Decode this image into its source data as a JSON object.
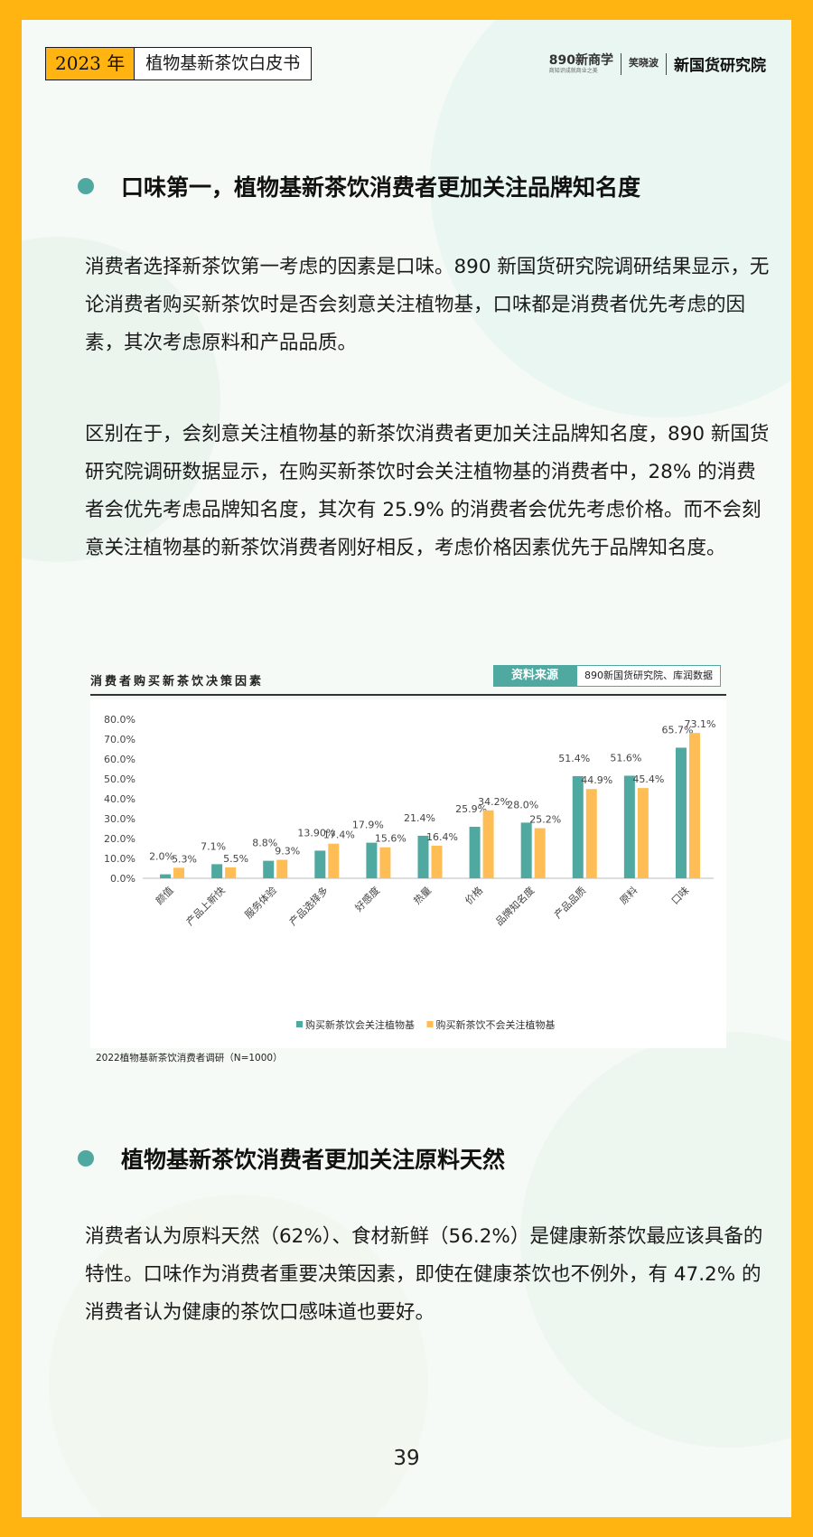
{
  "header": {
    "year": "2023 年",
    "title": "植物基新茶饮白皮书",
    "logo_890": "890新商学",
    "logo_890_sub": "商知识成就商业之美",
    "logo_wx": "笑晓波",
    "logo_main": "新国货研究院"
  },
  "section1": {
    "title": "口味第一，植物基新茶饮消费者更加关注品牌知名度",
    "p1": "消费者选择新茶饮第一考虑的因素是口味。890 新国货研究院调研结果显示，无论消费者购买新茶饮时是否会刻意关注植物基，口味都是消费者优先考虑的因素，其次考虑原料和产品品质。",
    "p2": "区别在于，会刻意关注植物基的新茶饮消费者更加关注品牌知名度，890 新国货研究院调研数据显示，在购买新茶饮时会关注植物基的消费者中，28% 的消费者会优先考虑品牌知名度，其次有 25.9% 的消费者会优先考虑价格。而不会刻意关注植物基的新茶饮消费者刚好相反，考虑价格因素优先于品牌知名度。"
  },
  "chart_header": {
    "title": "消费者购买新茶饮决策因素",
    "source_label": "资料来源",
    "source_value": "890新国货研究院、库润数据"
  },
  "chart_note": "2022植物基新茶饮消费者调研（N=1000）",
  "chart_data": {
    "type": "bar",
    "categories": [
      "颜值",
      "产品上新快",
      "服务体验",
      "产品选择多",
      "好感度",
      "热量",
      "价格",
      "品牌知名度",
      "产品品质",
      "原料",
      "口味"
    ],
    "series": [
      {
        "name": "购买新茶饮会关注植物基",
        "values": [
          2.0,
          7.1,
          8.8,
          13.9,
          17.9,
          21.4,
          25.9,
          28.0,
          51.4,
          51.6,
          65.7
        ],
        "labels": [
          "2.0%",
          "7.1%",
          "8.8%",
          "13.90%",
          "17.9%",
          "21.4%",
          "25.9%",
          "28.0%",
          "51.4%",
          "51.6%",
          "65.7%"
        ],
        "color": "#4FA9A0"
      },
      {
        "name": "购买新茶饮不会关注植物基",
        "values": [
          5.3,
          5.5,
          9.3,
          17.4,
          15.6,
          16.4,
          34.2,
          25.2,
          44.9,
          45.4,
          73.1
        ],
        "labels": [
          "5.3%",
          "5.5%",
          "9.3%",
          "17.4%",
          "15.6%",
          "16.4%",
          "34.2%",
          "25.2%",
          "44.9%",
          "45.4%",
          "73.1%"
        ],
        "color": "#FFBE55"
      }
    ],
    "yticks": [
      "0.0%",
      "10.0%",
      "20.0%",
      "30.0%",
      "40.0%",
      "50.0%",
      "60.0%",
      "70.0%",
      "80.0%"
    ],
    "ylim": [
      0,
      80
    ],
    "grid": false,
    "legend": "bottom"
  },
  "section2": {
    "title": "植物基新茶饮消费者更加关注原料天然",
    "p1": "消费者认为原料天然（62%）、食材新鲜（56.2%）是健康新茶饮最应该具备的特性。口味作为消费者重要决策因素，即使在健康茶饮也不例外，有 47.2% 的消费者认为健康的茶饮口感味道也要好。"
  },
  "page_number": "39"
}
